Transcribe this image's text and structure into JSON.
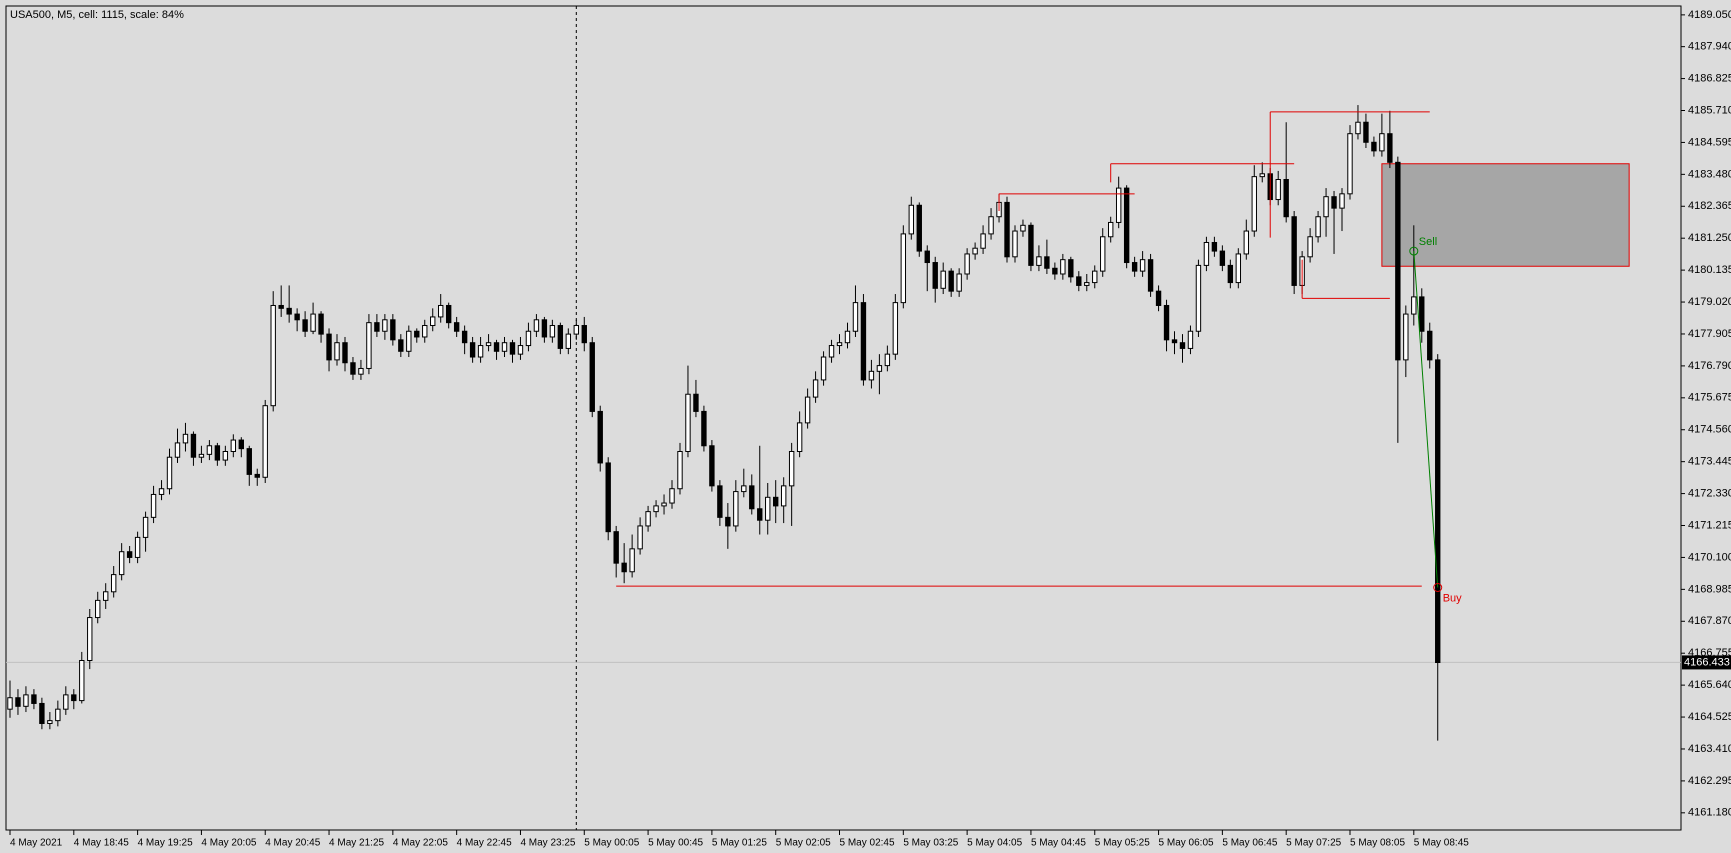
{
  "chart_data": {
    "type": "candlestick",
    "title": "USA500, M5, cell: 1115, scale: 84%",
    "xlim": [
      -0.5,
      209.5
    ],
    "ylim": [
      4160.58,
      4189.36
    ],
    "xticks": [
      {
        "value": 0,
        "label": "4 May 2021"
      },
      {
        "value": 8,
        "label": "4 May 18:45"
      },
      {
        "value": 16,
        "label": "4 May 19:25"
      },
      {
        "value": 24,
        "label": "4 May 20:05"
      },
      {
        "value": 32,
        "label": "4 May 20:45"
      },
      {
        "value": 40,
        "label": "4 May 21:25"
      },
      {
        "value": 48,
        "label": "4 May 22:05"
      },
      {
        "value": 56,
        "label": "4 May 22:45"
      },
      {
        "value": 64,
        "label": "4 May 23:25"
      },
      {
        "value": 72,
        "label": "5 May 00:05"
      },
      {
        "value": 80,
        "label": "5 May 00:45"
      },
      {
        "value": 88,
        "label": "5 May 01:25"
      },
      {
        "value": 96,
        "label": "5 May 02:05"
      },
      {
        "value": 104,
        "label": "5 May 02:45"
      },
      {
        "value": 112,
        "label": "5 May 03:25"
      },
      {
        "value": 120,
        "label": "5 May 04:05"
      },
      {
        "value": 128,
        "label": "5 May 04:45"
      },
      {
        "value": 136,
        "label": "5 May 05:25"
      },
      {
        "value": 144,
        "label": "5 May 06:05"
      },
      {
        "value": 152,
        "label": "5 May 06:45"
      },
      {
        "value": 160,
        "label": "5 May 07:25"
      },
      {
        "value": 168,
        "label": "5 May 08:05"
      },
      {
        "value": 176,
        "label": "5 May 08:45"
      }
    ],
    "yticks": [
      {
        "value": 4189.05,
        "label": "4189.050"
      },
      {
        "value": 4187.94,
        "label": "4187.940"
      },
      4186.825,
      {
        "value": 4185.71,
        "label": "4185.710"
      },
      4184.595,
      {
        "value": 4183.48,
        "label": "4183.480"
      },
      4182.365,
      {
        "value": 4181.25,
        "label": "4181.250"
      },
      4180.135,
      {
        "value": 4179.02,
        "label": "4179.020"
      },
      4177.905,
      {
        "value": 4176.79,
        "label": "4176.790"
      },
      4175.675,
      {
        "value": 4174.56,
        "label": "4174.560"
      },
      4173.445,
      {
        "value": 4172.33,
        "label": "4172.330"
      },
      4171.215,
      {
        "value": 4170.1,
        "label": "4170.100"
      },
      4168.985,
      {
        "value": 4167.87,
        "label": "4167.870"
      },
      4166.755,
      {
        "value": 4165.64,
        "label": "4165.640"
      },
      4164.525,
      {
        "value": 4163.41,
        "label": "4163.410"
      },
      4162.295,
      {
        "value": 4161.18,
        "label": "4161.180"
      }
    ],
    "current_price": 4166.433,
    "separator_bar": 71,
    "ohlc": [
      [
        4164.8,
        4165.8,
        4164.5,
        4165.2
      ],
      [
        4165.2,
        4165.5,
        4164.6,
        4164.9
      ],
      [
        4164.9,
        4165.6,
        4164.7,
        4165.3
      ],
      [
        4165.3,
        4165.5,
        4164.8,
        4165.0
      ],
      [
        4165.0,
        4165.2,
        4164.1,
        4164.3
      ],
      [
        4164.3,
        4164.7,
        4164.1,
        4164.4
      ],
      [
        4164.4,
        4165.1,
        4164.2,
        4164.8
      ],
      [
        4164.8,
        4165.6,
        4164.6,
        4165.3
      ],
      [
        4165.3,
        4165.5,
        4164.8,
        4165.1
      ],
      [
        4165.1,
        4166.8,
        4165.0,
        4166.5
      ],
      [
        4166.5,
        4168.3,
        4166.2,
        4168.0
      ],
      [
        4168.0,
        4168.9,
        4167.8,
        4168.6
      ],
      [
        4168.6,
        4169.2,
        4168.3,
        4168.9
      ],
      [
        4168.9,
        4169.8,
        4168.7,
        4169.5
      ],
      [
        4169.5,
        4170.6,
        4169.3,
        4170.3
      ],
      [
        4170.3,
        4170.5,
        4169.9,
        4170.1
      ],
      [
        4170.1,
        4171.0,
        4169.9,
        4170.8
      ],
      [
        4170.8,
        4171.7,
        4170.3,
        4171.5
      ],
      [
        4171.5,
        4172.6,
        4171.3,
        4172.3
      ],
      [
        4172.3,
        4172.8,
        4172.1,
        4172.5
      ],
      [
        4172.5,
        4173.9,
        4172.3,
        4173.6
      ],
      [
        4173.6,
        4174.6,
        4173.4,
        4174.1
      ],
      [
        4174.1,
        4174.8,
        4173.8,
        4174.4
      ],
      [
        4174.4,
        4174.5,
        4173.3,
        4173.6
      ],
      [
        4173.6,
        4174.0,
        4173.4,
        4173.7
      ],
      [
        4173.7,
        4174.2,
        4173.5,
        4174.0
      ],
      [
        4174.0,
        4174.1,
        4173.3,
        4173.5
      ],
      [
        4173.5,
        4174.0,
        4173.3,
        4173.8
      ],
      [
        4173.8,
        4174.4,
        4173.6,
        4174.2
      ],
      [
        4174.2,
        4174.3,
        4173.6,
        4173.9
      ],
      [
        4173.9,
        4174.0,
        4172.6,
        4173.0
      ],
      [
        4173.0,
        4173.2,
        4172.6,
        4172.9
      ],
      [
        4172.9,
        4175.6,
        4172.7,
        4175.4
      ],
      [
        4175.4,
        4179.4,
        4175.2,
        4178.9
      ],
      [
        4178.9,
        4179.6,
        4178.5,
        4178.8
      ],
      [
        4178.8,
        4179.6,
        4178.3,
        4178.6
      ],
      [
        4178.6,
        4178.8,
        4178.0,
        4178.4
      ],
      [
        4178.4,
        4178.7,
        4177.8,
        4178.0
      ],
      [
        4178.0,
        4179.0,
        4177.9,
        4178.6
      ],
      [
        4178.6,
        4178.7,
        4177.6,
        4177.9
      ],
      [
        4177.9,
        4178.1,
        4176.6,
        4177.0
      ],
      [
        4177.0,
        4177.9,
        4176.8,
        4177.6
      ],
      [
        4177.6,
        4177.8,
        4176.6,
        4176.9
      ],
      [
        4176.9,
        4177.1,
        4176.3,
        4176.5
      ],
      [
        4176.5,
        4177.0,
        4176.3,
        4176.7
      ],
      [
        4176.7,
        4178.6,
        4176.5,
        4178.3
      ],
      [
        4178.3,
        4178.6,
        4177.8,
        4178.0
      ],
      [
        4178.0,
        4178.6,
        4177.7,
        4178.4
      ],
      [
        4178.4,
        4178.6,
        4177.5,
        4177.7
      ],
      [
        4177.7,
        4177.9,
        4177.1,
        4177.3
      ],
      [
        4177.3,
        4178.2,
        4177.1,
        4178.0
      ],
      [
        4178.0,
        4178.1,
        4177.6,
        4177.8
      ],
      [
        4177.8,
        4178.4,
        4177.6,
        4178.2
      ],
      [
        4178.2,
        4178.8,
        4178.0,
        4178.5
      ],
      [
        4178.5,
        4179.3,
        4178.3,
        4178.9
      ],
      [
        4178.9,
        4179.0,
        4178.1,
        4178.3
      ],
      [
        4178.3,
        4178.5,
        4177.8,
        4178.0
      ],
      [
        4178.0,
        4178.2,
        4177.2,
        4177.6
      ],
      [
        4177.6,
        4177.8,
        4176.9,
        4177.1
      ],
      [
        4177.1,
        4177.8,
        4176.9,
        4177.5
      ],
      [
        4177.5,
        4177.9,
        4177.3,
        4177.6
      ],
      [
        4177.6,
        4177.7,
        4177.0,
        4177.3
      ],
      [
        4177.3,
        4177.8,
        4177.1,
        4177.6
      ],
      [
        4177.6,
        4177.7,
        4176.9,
        4177.2
      ],
      [
        4177.2,
        4177.8,
        4177.0,
        4177.5
      ],
      [
        4177.5,
        4178.3,
        4177.3,
        4178.0
      ],
      [
        4178.0,
        4178.6,
        4177.8,
        4178.4
      ],
      [
        4178.4,
        4178.5,
        4177.6,
        4177.8
      ],
      [
        4177.8,
        4178.4,
        4177.6,
        4178.2
      ],
      [
        4178.2,
        4178.3,
        4177.2,
        4177.4
      ],
      [
        4177.4,
        4178.1,
        4177.2,
        4177.9
      ],
      [
        4177.9,
        4178.4,
        4177.7,
        4178.2
      ],
      [
        4178.2,
        4178.5,
        4177.3,
        4177.6
      ],
      [
        4177.6,
        4177.8,
        4175.0,
        4175.2
      ],
      [
        4175.2,
        4175.4,
        4173.1,
        4173.4
      ],
      [
        4173.4,
        4173.6,
        4170.7,
        4171.0
      ],
      [
        4171.0,
        4171.2,
        4169.4,
        4169.9
      ],
      [
        4169.9,
        4170.6,
        4169.2,
        4169.6
      ],
      [
        4169.6,
        4170.9,
        4169.4,
        4170.4
      ],
      [
        4170.4,
        4171.5,
        4170.2,
        4171.2
      ],
      [
        4171.2,
        4171.9,
        4171.0,
        4171.7
      ],
      [
        4171.7,
        4172.1,
        4171.5,
        4171.9
      ],
      [
        4171.9,
        4172.3,
        4171.6,
        4172.0
      ],
      [
        4172.0,
        4172.8,
        4171.8,
        4172.5
      ],
      [
        4172.5,
        4174.1,
        4172.3,
        4173.8
      ],
      [
        4173.8,
        4176.8,
        4173.6,
        4175.8
      ],
      [
        4175.8,
        4176.3,
        4175.0,
        4175.2
      ],
      [
        4175.2,
        4175.4,
        4173.8,
        4174.0
      ],
      [
        4174.0,
        4174.2,
        4172.4,
        4172.6
      ],
      [
        4172.6,
        4172.8,
        4171.2,
        4171.5
      ],
      [
        4171.5,
        4172.0,
        4170.4,
        4171.2
      ],
      [
        4171.2,
        4172.8,
        4171.0,
        4172.4
      ],
      [
        4172.4,
        4173.2,
        4172.2,
        4172.6
      ],
      [
        4172.6,
        4173.0,
        4171.6,
        4171.8
      ],
      [
        4171.8,
        4174.0,
        4170.9,
        4171.4
      ],
      [
        4171.4,
        4172.7,
        4170.9,
        4172.2
      ],
      [
        4172.2,
        4172.8,
        4171.3,
        4171.9
      ],
      [
        4171.9,
        4172.9,
        4171.3,
        4172.6
      ],
      [
        4172.6,
        4174.1,
        4171.2,
        4173.8
      ],
      [
        4173.8,
        4175.2,
        4173.6,
        4174.8
      ],
      [
        4174.8,
        4176.0,
        4174.6,
        4175.7
      ],
      [
        4175.7,
        4176.6,
        4175.5,
        4176.3
      ],
      [
        4176.3,
        4177.3,
        4176.1,
        4177.1
      ],
      [
        4177.1,
        4177.7,
        4176.9,
        4177.5
      ],
      [
        4177.5,
        4177.9,
        4177.2,
        4177.6
      ],
      [
        4177.6,
        4178.3,
        4177.4,
        4178.0
      ],
      [
        4178.0,
        4179.6,
        4177.8,
        4179.0
      ],
      [
        4179.0,
        4179.3,
        4176.1,
        4176.3
      ],
      [
        4176.3,
        4177.0,
        4176.0,
        4176.6
      ],
      [
        4176.6,
        4177.2,
        4175.8,
        4176.8
      ],
      [
        4176.8,
        4177.5,
        4176.6,
        4177.2
      ],
      [
        4177.2,
        4179.3,
        4177.0,
        4179.0
      ],
      [
        4179.0,
        4181.7,
        4178.8,
        4181.4
      ],
      [
        4181.4,
        4182.7,
        4181.2,
        4182.4
      ],
      [
        4182.4,
        4182.5,
        4180.6,
        4180.8
      ],
      [
        4180.8,
        4181.0,
        4179.4,
        4180.4
      ],
      [
        4180.4,
        4180.6,
        4179.0,
        4179.5
      ],
      [
        4179.5,
        4180.4,
        4179.3,
        4180.1
      ],
      [
        4180.1,
        4180.2,
        4179.2,
        4179.4
      ],
      [
        4179.4,
        4180.2,
        4179.2,
        4180.0
      ],
      [
        4180.0,
        4180.9,
        4179.8,
        4180.7
      ],
      [
        4180.7,
        4181.1,
        4180.5,
        4180.9
      ],
      [
        4180.9,
        4181.7,
        4180.7,
        4181.4
      ],
      [
        4181.4,
        4182.3,
        4181.2,
        4182.0
      ],
      [
        4182.0,
        4182.8,
        4181.8,
        4182.5
      ],
      [
        4182.5,
        4182.7,
        4180.4,
        4180.6
      ],
      [
        4180.6,
        4181.7,
        4180.4,
        4181.5
      ],
      [
        4181.5,
        4181.9,
        4181.3,
        4181.7
      ],
      [
        4181.7,
        4181.8,
        4180.1,
        4180.3
      ],
      [
        4180.3,
        4181.0,
        4180.1,
        4180.6
      ],
      [
        4180.6,
        4181.2,
        4180.0,
        4180.2
      ],
      [
        4180.2,
        4180.4,
        4179.8,
        4180.0
      ],
      [
        4180.0,
        4180.7,
        4179.8,
        4180.5
      ],
      [
        4180.5,
        4180.6,
        4179.7,
        4179.9
      ],
      [
        4179.9,
        4180.1,
        4179.4,
        4179.6
      ],
      [
        4179.6,
        4180.0,
        4179.4,
        4179.7
      ],
      [
        4179.7,
        4180.3,
        4179.5,
        4180.1
      ],
      [
        4180.1,
        4181.6,
        4179.9,
        4181.3
      ],
      [
        4181.3,
        4182.0,
        4181.1,
        4181.8
      ],
      [
        4181.8,
        4183.4,
        4181.6,
        4183.0
      ],
      [
        4183.0,
        4183.1,
        4180.2,
        4180.4
      ],
      [
        4180.4,
        4180.6,
        4179.9,
        4180.1
      ],
      [
        4180.1,
        4180.8,
        4179.9,
        4180.5
      ],
      [
        4180.5,
        4180.7,
        4179.2,
        4179.4
      ],
      [
        4179.4,
        4179.6,
        4178.7,
        4178.9
      ],
      [
        4178.9,
        4179.1,
        4177.3,
        4177.7
      ],
      [
        4177.7,
        4178.0,
        4177.2,
        4177.6
      ],
      [
        4177.6,
        4177.9,
        4176.9,
        4177.4
      ],
      [
        4177.4,
        4178.2,
        4177.2,
        4178.0
      ],
      [
        4178.0,
        4180.5,
        4177.8,
        4180.3
      ],
      [
        4180.3,
        4181.3,
        4180.1,
        4181.1
      ],
      [
        4181.1,
        4181.3,
        4180.6,
        4180.8
      ],
      [
        4180.8,
        4181.0,
        4180.1,
        4180.3
      ],
      [
        4180.3,
        4180.5,
        4179.5,
        4179.7
      ],
      [
        4179.7,
        4180.9,
        4179.5,
        4180.7
      ],
      [
        4180.7,
        4181.9,
        4180.5,
        4181.5
      ],
      [
        4181.5,
        4183.8,
        4181.3,
        4183.4
      ],
      [
        4183.4,
        4183.9,
        4183.2,
        4183.5
      ],
      [
        4183.5,
        4183.7,
        4182.4,
        4182.6
      ],
      [
        4182.6,
        4183.6,
        4182.4,
        4183.3
      ],
      [
        4183.3,
        4185.3,
        4181.8,
        4182.0
      ],
      [
        4182.0,
        4182.2,
        4179.3,
        4179.6
      ],
      [
        4179.6,
        4180.8,
        4179.3,
        4180.6
      ],
      [
        4180.6,
        4181.6,
        4180.4,
        4181.3
      ],
      [
        4181.3,
        4182.2,
        4181.1,
        4182.0
      ],
      [
        4182.0,
        4183.0,
        4181.3,
        4182.7
      ],
      [
        4182.7,
        4182.9,
        4180.7,
        4182.3
      ],
      [
        4182.3,
        4183.0,
        4181.5,
        4182.8
      ],
      [
        4182.8,
        4185.2,
        4182.6,
        4184.9
      ],
      [
        4184.9,
        4185.9,
        4184.7,
        4185.3
      ],
      [
        4185.3,
        4185.6,
        4184.4,
        4184.6
      ],
      [
        4184.6,
        4184.8,
        4184.1,
        4184.3
      ],
      [
        4184.3,
        4185.6,
        4184.1,
        4184.9
      ],
      [
        4184.9,
        4185.7,
        4183.7,
        4183.9
      ],
      [
        4183.9,
        4184.1,
        4174.1,
        4177.0
      ],
      [
        4177.0,
        4178.9,
        4176.4,
        4178.6
      ],
      [
        4178.6,
        4181.7,
        4178.2,
        4179.2
      ],
      [
        4179.2,
        4179.5,
        4177.6,
        4178.0
      ],
      [
        4178.0,
        4178.3,
        4176.7,
        4177.0
      ],
      [
        4177.0,
        4177.2,
        4163.7,
        4166.43
      ]
    ],
    "levels": [
      {
        "price": 4169.1,
        "from": 76,
        "to": 177,
        "color": "#e00000"
      },
      {
        "price": 4182.8,
        "from": 124,
        "to": 141,
        "stem": 4182.2,
        "color": "#e00000"
      },
      {
        "price": 4183.85,
        "from": 138,
        "to": 161,
        "stem": 4183.2,
        "color": "#e00000"
      },
      {
        "price": 4185.66,
        "from": 158,
        "to": 178,
        "stem": 4181.27,
        "color": "#e00000"
      },
      {
        "price": 4179.15,
        "from": 162,
        "to": 173,
        "stem": 4180.5,
        "color": "#e00000"
      }
    ],
    "zone": {
      "xlim": [
        172,
        203
      ],
      "ylim": [
        4180.27,
        4183.85
      ],
      "color": "#a6a6a6",
      "border": "#e00000"
    },
    "signals": [
      {
        "label": "Sell",
        "bar": 176,
        "price": 4180.8,
        "color": "#008000"
      },
      {
        "label": "Buy",
        "bar": 179,
        "price": 4169.05,
        "color": "#e00000"
      }
    ],
    "signal_link_color": "#008000"
  }
}
